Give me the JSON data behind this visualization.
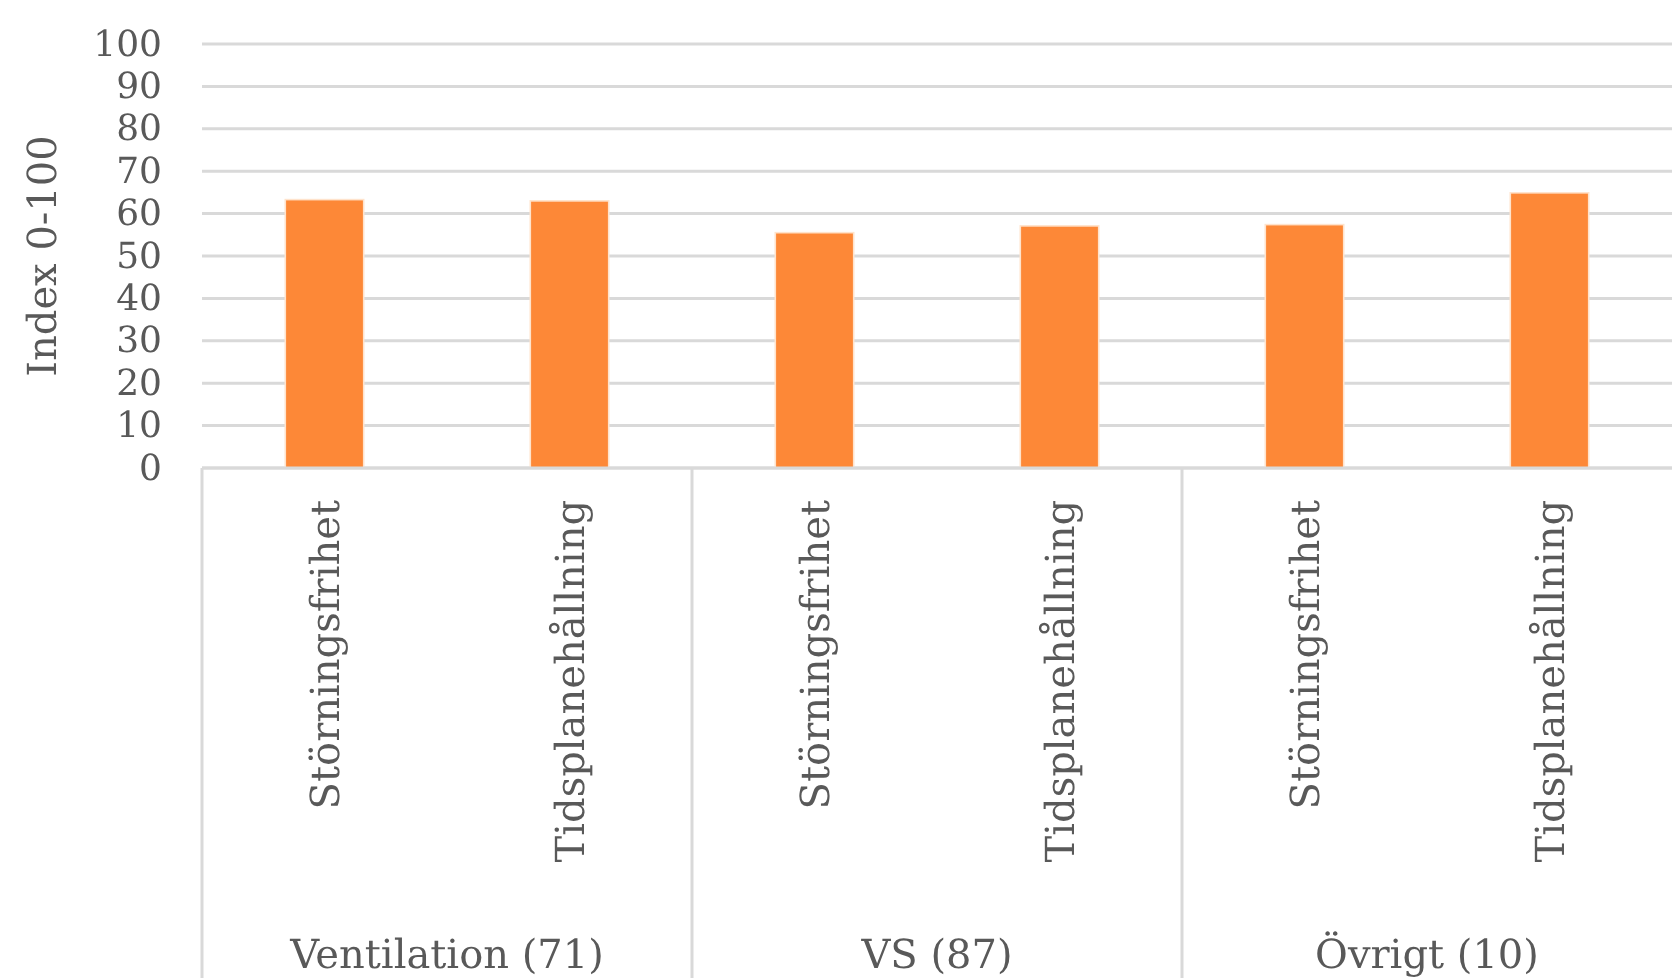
{
  "chart_data": {
    "type": "bar",
    "ylabel": "Index 0-100",
    "categories": [
      "Störningsfrihet",
      "Tidsplanehållning",
      "Störningsfrihet",
      "Tidsplanehållning",
      "Störningsfrihet",
      "Tidsplanehållning"
    ],
    "values": [
      63.3,
      63.0,
      55.5,
      57.1,
      57.4,
      64.9
    ],
    "color": "#fd8837",
    "ylim": [
      0,
      100
    ],
    "yticks": [
      0,
      10,
      20,
      30,
      40,
      50,
      60,
      70,
      80,
      90,
      100
    ],
    "grid": "y",
    "annotations": [
      "Ventilation (71)",
      "VS (87)",
      "Övrigt (10)"
    ]
  }
}
